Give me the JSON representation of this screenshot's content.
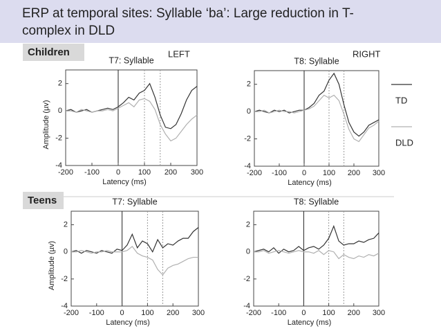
{
  "slide": {
    "title_line1": "ERP at temporal sites: Syllable ‘ba’: Large reduction in T-",
    "title_line2": "complex in DLD",
    "group_top": "Children",
    "group_bottom": "Teens",
    "left": "LEFT",
    "right": "RIGHT"
  },
  "legend": [
    {
      "name": "TD",
      "color": "#333333"
    },
    {
      "name": "DLD",
      "color": "#b0b0b0"
    }
  ],
  "chart_data": [
    {
      "type": "line",
      "title": "T7: Syllable",
      "ylabel": "Amplitude (µv)",
      "xlabel": "Latency (ms)",
      "x": [
        -200,
        -180,
        -160,
        -140,
        -120,
        -100,
        -80,
        -60,
        -40,
        -20,
        0,
        20,
        40,
        60,
        80,
        100,
        120,
        140,
        160,
        180,
        200,
        220,
        240,
        260,
        280,
        300
      ],
      "series": [
        {
          "color": "#333333",
          "values": [
            0,
            0.1,
            -0.1,
            0,
            0.1,
            -0.1,
            0,
            0.1,
            0.2,
            0.1,
            0.3,
            0.6,
            1.0,
            0.8,
            1.3,
            1.5,
            2.0,
            1.0,
            -0.3,
            -1.2,
            -1.3,
            -1.0,
            -0.2,
            0.8,
            1.5,
            1.8
          ]
        },
        {
          "color": "#b0b0b0",
          "values": [
            0,
            0,
            -0.1,
            0.1,
            0,
            -0.1,
            0,
            0,
            0.1,
            0,
            0.2,
            0.4,
            0.6,
            0.3,
            0.8,
            0.9,
            0.7,
            0.1,
            -1.0,
            -1.7,
            -2.2,
            -2.0,
            -1.5,
            -1.0,
            -0.6,
            -0.3
          ]
        }
      ],
      "vlines": [
        0,
        100,
        160
      ],
      "xlim": [
        -200,
        300
      ],
      "ylim": [
        -4,
        3
      ],
      "xticks": [
        -200,
        -100,
        0,
        100,
        200,
        300
      ],
      "yticks": [
        -4,
        -2,
        0,
        2
      ]
    },
    {
      "type": "line",
      "title": "T8: Syllable",
      "xlabel": "Latency (ms)",
      "x": [
        -200,
        -180,
        -160,
        -140,
        -120,
        -100,
        -80,
        -60,
        -40,
        -20,
        0,
        20,
        40,
        60,
        80,
        100,
        120,
        140,
        160,
        180,
        200,
        220,
        240,
        260,
        280,
        300
      ],
      "series": [
        {
          "color": "#333333",
          "values": [
            0,
            0.1,
            0,
            -0.1,
            0.1,
            0,
            0.1,
            -0.1,
            0,
            0.1,
            0.1,
            0.3,
            0.6,
            1.2,
            1.5,
            2.3,
            2.8,
            2.0,
            0.5,
            -0.8,
            -1.5,
            -1.8,
            -1.5,
            -1.0,
            -0.8,
            -0.6
          ]
        },
        {
          "color": "#b0b0b0",
          "values": [
            0,
            0,
            0.1,
            -0.1,
            0,
            0.1,
            0,
            0,
            -0.1,
            0,
            0.1,
            0.2,
            0.4,
            0.8,
            1.2,
            1.0,
            1.2,
            0.8,
            -0.2,
            -1.3,
            -2.0,
            -2.2,
            -1.7,
            -1.2,
            -1.0,
            -0.7
          ]
        }
      ],
      "vlines": [
        0,
        100,
        160
      ],
      "xlim": [
        -200,
        300
      ],
      "ylim": [
        -4,
        3
      ],
      "xticks": [
        -200,
        -100,
        0,
        100,
        200,
        300
      ],
      "yticks": [
        -4,
        -2,
        0,
        2
      ]
    },
    {
      "type": "line",
      "title": "T7: Syllable",
      "ylabel": "Amplitude (µv)",
      "xlabel": "Latency (ms)",
      "x": [
        -200,
        -180,
        -160,
        -140,
        -120,
        -100,
        -80,
        -60,
        -40,
        -20,
        0,
        20,
        40,
        60,
        80,
        100,
        120,
        140,
        160,
        180,
        200,
        220,
        240,
        260,
        280,
        300
      ],
      "series": [
        {
          "color": "#333333",
          "values": [
            0,
            0.1,
            -0.1,
            0.1,
            0,
            -0.1,
            0.1,
            0,
            -0.1,
            0.2,
            0.1,
            0.5,
            1.3,
            0.3,
            0.8,
            0.6,
            0,
            0.9,
            0.3,
            0.6,
            0.5,
            0.8,
            1.0,
            1.0,
            1.5,
            1.8
          ]
        },
        {
          "color": "#b0b0b0",
          "values": [
            0,
            0,
            0.1,
            0,
            -0.1,
            0,
            0,
            0.1,
            0,
            0,
            0,
            0.1,
            0.4,
            -0.1,
            -0.3,
            -0.4,
            -0.6,
            -1.3,
            -1.7,
            -1.2,
            -1.0,
            -0.9,
            -0.7,
            -0.5,
            -0.4,
            -0.4
          ]
        }
      ],
      "vlines": [
        0,
        100,
        160
      ],
      "xlim": [
        -200,
        300
      ],
      "ylim": [
        -4,
        3
      ],
      "xticks": [
        -200,
        -100,
        0,
        100,
        200,
        300
      ],
      "yticks": [
        -4,
        -2,
        0,
        2
      ]
    },
    {
      "type": "line",
      "title": "T8: Syllable",
      "xlabel": "Latency (ms)",
      "x": [
        -200,
        -180,
        -160,
        -140,
        -120,
        -100,
        -80,
        -60,
        -40,
        -20,
        0,
        20,
        40,
        60,
        80,
        100,
        120,
        140,
        160,
        180,
        200,
        220,
        240,
        260,
        280,
        300
      ],
      "series": [
        {
          "color": "#333333",
          "values": [
            0,
            0.1,
            0.2,
            0,
            0.3,
            -0.1,
            0.2,
            0,
            0.1,
            0.4,
            0.1,
            0.3,
            0.4,
            0.2,
            0.5,
            1.0,
            1.9,
            0.8,
            0.5,
            0.6,
            0.6,
            0.8,
            0.7,
            0.9,
            1.0,
            1.4
          ]
        },
        {
          "color": "#b0b0b0",
          "values": [
            0,
            0,
            0.1,
            -0.1,
            0,
            0.1,
            0,
            -0.1,
            0,
            0.1,
            0,
            0,
            -0.1,
            0.1,
            -0.2,
            0.1,
            0,
            -0.5,
            -0.2,
            -0.4,
            -0.5,
            -0.3,
            -0.4,
            -0.2,
            -0.3,
            -0.1
          ]
        }
      ],
      "vlines": [
        0,
        100,
        160
      ],
      "xlim": [
        -200,
        300
      ],
      "ylim": [
        -4,
        3
      ],
      "xticks": [
        -200,
        -100,
        0,
        100,
        200,
        300
      ],
      "yticks": [
        -4,
        -2,
        0,
        2
      ]
    }
  ]
}
